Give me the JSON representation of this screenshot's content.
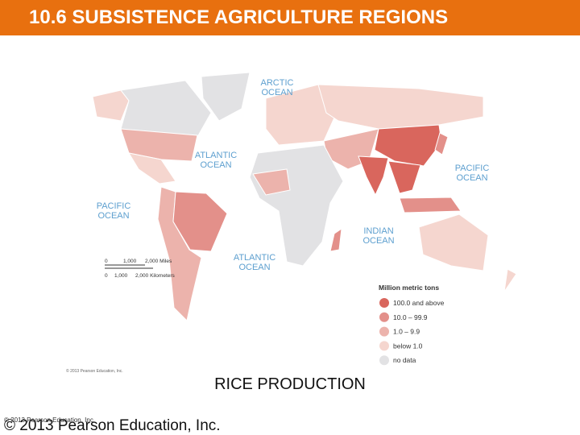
{
  "header": {
    "title": "10.6 SUBSISTENCE AGRICULTURE REGIONS",
    "color": "#e8700f"
  },
  "map": {
    "oceans": [
      {
        "lines": [
          "ARCTIC",
          "OCEAN"
        ]
      },
      {
        "lines": [
          "ATLANTIC",
          "OCEAN"
        ]
      },
      {
        "lines": [
          "PACIFIC",
          "OCEAN"
        ]
      },
      {
        "lines": [
          "PACIFIC",
          "OCEAN"
        ]
      },
      {
        "lines": [
          "INDIAN",
          "OCEAN"
        ]
      },
      {
        "lines": [
          "ATLANTIC",
          "OCEAN"
        ]
      }
    ],
    "scale": {
      "miles": [
        "0",
        "1,000",
        "2,000 Miles"
      ],
      "kilometers": [
        "0",
        "1,000",
        "2,000 Kilometers"
      ]
    },
    "legend": {
      "title": "Million metric tons",
      "items": [
        {
          "label": "100.0 and above",
          "color": "#d9665d"
        },
        {
          "label": "10.0 – 99.9",
          "color": "#e3908a"
        },
        {
          "label": "1.0 – 9.9",
          "color": "#ecb3ac"
        },
        {
          "label": "below 1.0",
          "color": "#f5d6cf"
        },
        {
          "label": "no data",
          "color": "#e2e2e4"
        }
      ]
    },
    "credit": "© 2013 Pearson Education, Inc."
  },
  "caption": "RICE PRODUCTION",
  "footer": {
    "small": "© 2013 Pearson Education, Inc.",
    "large": "© 2013 Pearson Education, Inc."
  }
}
